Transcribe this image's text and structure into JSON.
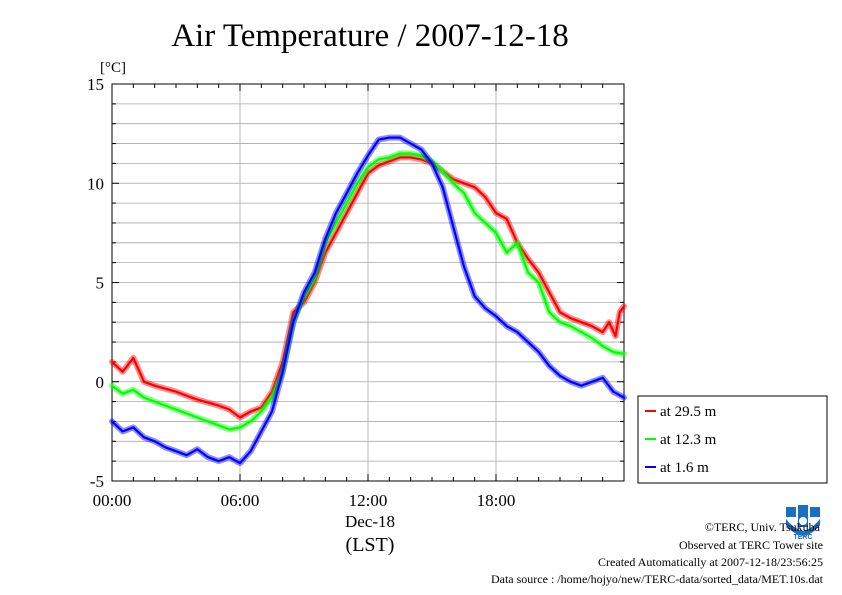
{
  "chart_data": {
    "type": "line",
    "title": "Air Temperature / 2007-12-18",
    "ylabel": "[°C]",
    "xlabel": "Dec-18",
    "xlabel2": "(LST)",
    "xlim": [
      0,
      24
    ],
    "ylim": [
      -5,
      15
    ],
    "grid": true,
    "legend_position": "bottom-right outside",
    "x_ticks": [
      {
        "value": 0,
        "label": "00:00"
      },
      {
        "value": 6,
        "label": "06:00"
      },
      {
        "value": 12,
        "label": "12:00"
      },
      {
        "value": 18,
        "label": "18:00"
      }
    ],
    "y_ticks": [
      {
        "value": 15,
        "label": "15"
      },
      {
        "value": 10,
        "label": "10"
      },
      {
        "value": 5,
        "label": "5"
      },
      {
        "value": 0,
        "label": "0"
      },
      {
        "value": -5,
        "label": "-5"
      }
    ],
    "series": [
      {
        "name": "at 29.5 m",
        "color": "#ff0000",
        "points": [
          [
            0,
            1.0
          ],
          [
            0.5,
            0.5
          ],
          [
            1,
            1.2
          ],
          [
            1.5,
            0
          ],
          [
            2,
            -0.2
          ],
          [
            3,
            -0.5
          ],
          [
            4,
            -0.9
          ],
          [
            5,
            -1.2
          ],
          [
            5.5,
            -1.4
          ],
          [
            6,
            -1.8
          ],
          [
            6.5,
            -1.5
          ],
          [
            7,
            -1.3
          ],
          [
            7.5,
            -0.5
          ],
          [
            8,
            1.0
          ],
          [
            8.5,
            3.5
          ],
          [
            9,
            4.0
          ],
          [
            9.5,
            5.0
          ],
          [
            10,
            6.5
          ],
          [
            10.5,
            7.5
          ],
          [
            11,
            8.5
          ],
          [
            11.5,
            9.5
          ],
          [
            12,
            10.5
          ],
          [
            12.5,
            10.9
          ],
          [
            13,
            11.1
          ],
          [
            13.5,
            11.3
          ],
          [
            14,
            11.3
          ],
          [
            14.5,
            11.2
          ],
          [
            15,
            11.0
          ],
          [
            15.5,
            10.6
          ],
          [
            16,
            10.2
          ],
          [
            16.5,
            10.0
          ],
          [
            17,
            9.8
          ],
          [
            17.5,
            9.3
          ],
          [
            18,
            8.5
          ],
          [
            18.5,
            8.2
          ],
          [
            19,
            7.0
          ],
          [
            19.5,
            6.2
          ],
          [
            20,
            5.5
          ],
          [
            20.5,
            4.5
          ],
          [
            21,
            3.5
          ],
          [
            21.5,
            3.2
          ],
          [
            22,
            3.0
          ],
          [
            22.5,
            2.8
          ],
          [
            23,
            2.5
          ],
          [
            23.3,
            3.0
          ],
          [
            23.6,
            2.3
          ],
          [
            23.8,
            3.5
          ],
          [
            24,
            3.8
          ]
        ]
      },
      {
        "name": "at 12.3 m",
        "color": "#00ff00",
        "points": [
          [
            0,
            -0.2
          ],
          [
            0.5,
            -0.6
          ],
          [
            1,
            -0.4
          ],
          [
            1.5,
            -0.8
          ],
          [
            2,
            -1.0
          ],
          [
            3,
            -1.4
          ],
          [
            4,
            -1.8
          ],
          [
            5,
            -2.2
          ],
          [
            5.5,
            -2.4
          ],
          [
            6,
            -2.3
          ],
          [
            6.5,
            -2.0
          ],
          [
            7,
            -1.5
          ],
          [
            7.5,
            -0.8
          ],
          [
            8,
            0.5
          ],
          [
            8.5,
            3.0
          ],
          [
            9,
            4.3
          ],
          [
            9.5,
            5.2
          ],
          [
            10,
            7.0
          ],
          [
            10.5,
            8.0
          ],
          [
            11,
            9.0
          ],
          [
            11.5,
            10.0
          ],
          [
            12,
            10.8
          ],
          [
            12.5,
            11.2
          ],
          [
            13,
            11.3
          ],
          [
            13.5,
            11.5
          ],
          [
            14,
            11.5
          ],
          [
            14.5,
            11.4
          ],
          [
            15,
            11.1
          ],
          [
            15.5,
            10.6
          ],
          [
            16,
            10.0
          ],
          [
            16.5,
            9.5
          ],
          [
            17,
            8.5
          ],
          [
            17.5,
            8.0
          ],
          [
            18,
            7.5
          ],
          [
            18.5,
            6.5
          ],
          [
            19,
            7.0
          ],
          [
            19.5,
            5.5
          ],
          [
            20,
            5.0
          ],
          [
            20.5,
            3.5
          ],
          [
            21,
            3.0
          ],
          [
            21.5,
            2.8
          ],
          [
            22,
            2.5
          ],
          [
            22.5,
            2.2
          ],
          [
            23,
            1.8
          ],
          [
            23.5,
            1.5
          ],
          [
            24,
            1.4
          ]
        ]
      },
      {
        "name": "at 1.6 m",
        "color": "#0000ff",
        "points": [
          [
            0,
            -2.0
          ],
          [
            0.5,
            -2.5
          ],
          [
            1,
            -2.3
          ],
          [
            1.5,
            -2.8
          ],
          [
            2,
            -3.0
          ],
          [
            2.5,
            -3.3
          ],
          [
            3,
            -3.5
          ],
          [
            3.5,
            -3.7
          ],
          [
            4,
            -3.4
          ],
          [
            4.5,
            -3.8
          ],
          [
            5,
            -4.0
          ],
          [
            5.5,
            -3.8
          ],
          [
            6,
            -4.1
          ],
          [
            6.5,
            -3.5
          ],
          [
            7,
            -2.5
          ],
          [
            7.5,
            -1.5
          ],
          [
            8,
            0.5
          ],
          [
            8.5,
            3.0
          ],
          [
            9,
            4.5
          ],
          [
            9.5,
            5.5
          ],
          [
            10,
            7.2
          ],
          [
            10.5,
            8.5
          ],
          [
            11,
            9.5
          ],
          [
            11.5,
            10.5
          ],
          [
            12,
            11.4
          ],
          [
            12.5,
            12.2
          ],
          [
            13,
            12.3
          ],
          [
            13.5,
            12.3
          ],
          [
            14,
            12.0
          ],
          [
            14.5,
            11.7
          ],
          [
            15,
            11.0
          ],
          [
            15.5,
            9.8
          ],
          [
            16,
            7.8
          ],
          [
            16.5,
            5.8
          ],
          [
            17,
            4.3
          ],
          [
            17.5,
            3.7
          ],
          [
            18,
            3.3
          ],
          [
            18.5,
            2.8
          ],
          [
            19,
            2.5
          ],
          [
            19.5,
            2.0
          ],
          [
            20,
            1.5
          ],
          [
            20.5,
            0.8
          ],
          [
            21,
            0.3
          ],
          [
            21.5,
            0
          ],
          [
            22,
            -0.2
          ],
          [
            22.5,
            0
          ],
          [
            23,
            0.2
          ],
          [
            23.5,
            -0.5
          ],
          [
            24,
            -0.8
          ]
        ]
      }
    ]
  },
  "footer": {
    "copyright": "©TERC, Univ. Tsukuba",
    "observed": "Observed at TERC Tower site",
    "created": "Created Automatically at 2007-12-18/23:56:25",
    "source": "Data source : /home/hojyo/new/TERC-data/sorted_data/MET.10s.dat"
  },
  "logo": {
    "text": "TERC",
    "color": "#1a6fc0"
  }
}
